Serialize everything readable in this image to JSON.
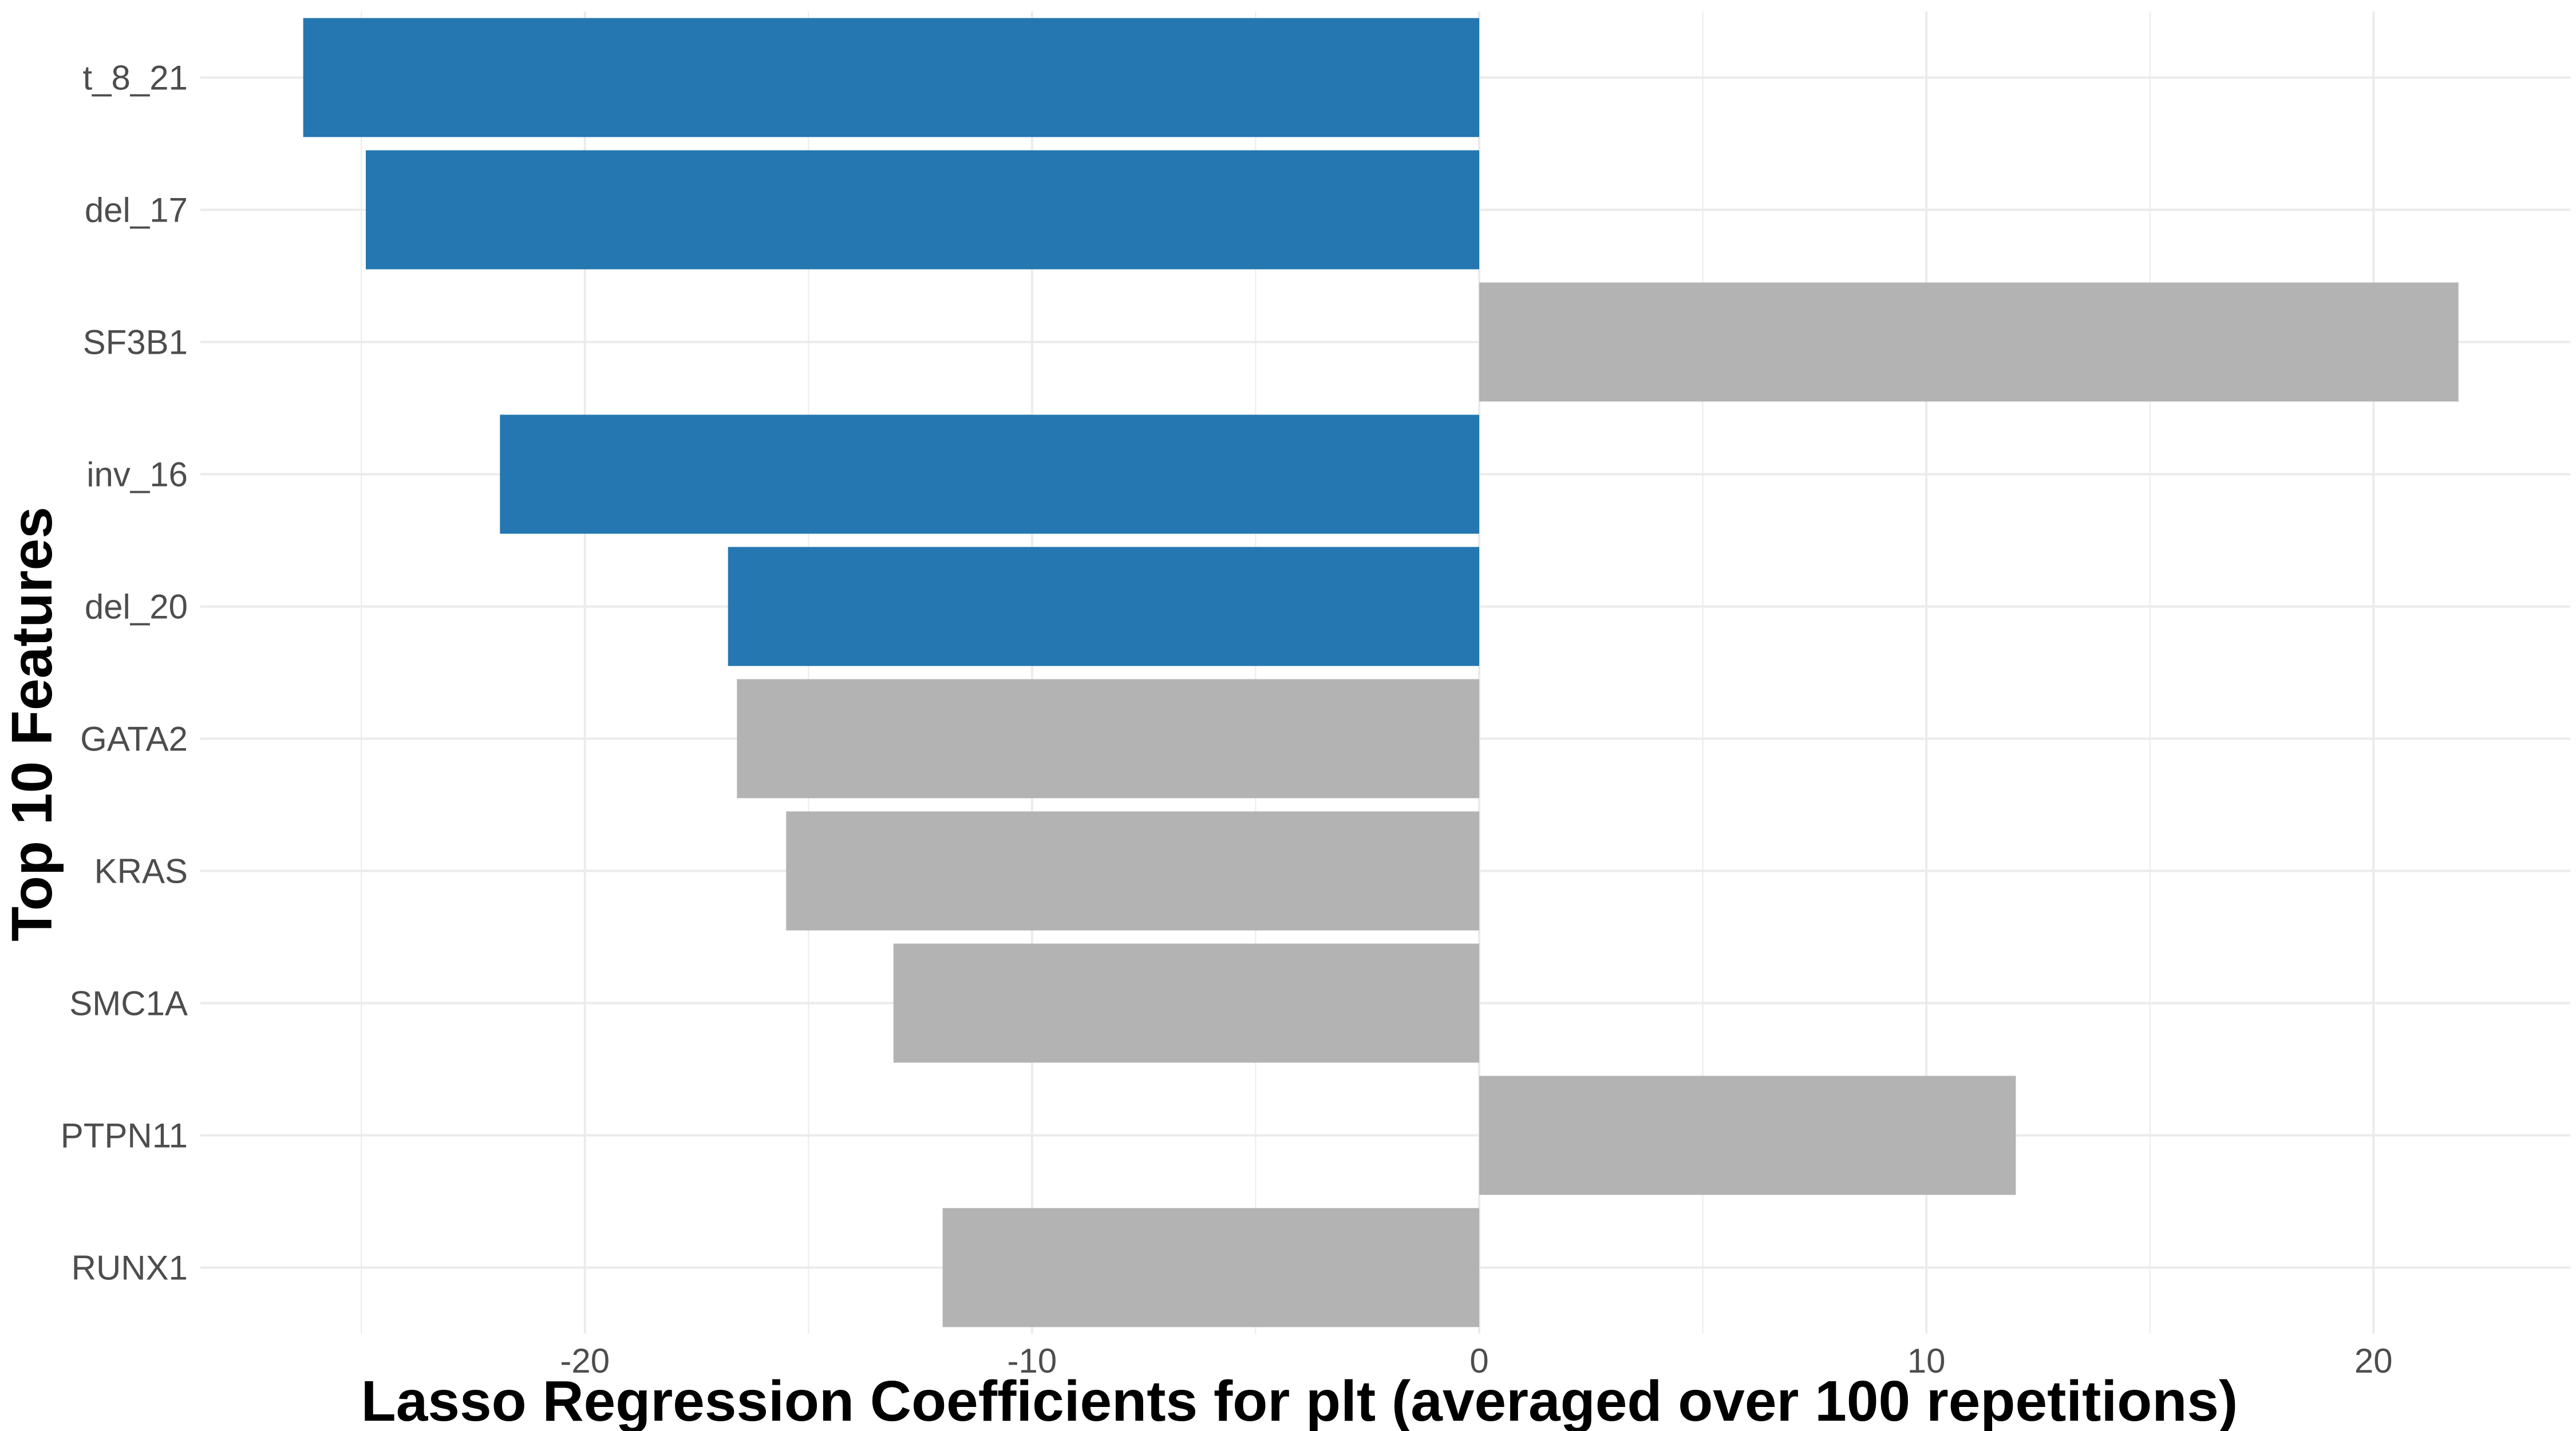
{
  "chart_data": {
    "type": "bar",
    "orientation": "horizontal",
    "title": "",
    "xlabel": "Lasso Regression Coefficients for plt (averaged over 100 repetitions)",
    "ylabel": "Top 10 Features",
    "categories": [
      "t_8_21",
      "del_17",
      "SF3B1",
      "inv_16",
      "del_20",
      "GATA2",
      "KRAS",
      "SMC1A",
      "PTPN11",
      "RUNX1"
    ],
    "values": [
      -26.3,
      -24.9,
      21.9,
      -21.9,
      -16.8,
      -16.6,
      -15.5,
      -13.1,
      12.0,
      -12.0
    ],
    "highlighted": [
      true,
      true,
      false,
      true,
      true,
      false,
      false,
      false,
      false,
      false
    ],
    "xlim": [
      -28.6,
      24.4
    ],
    "xticks": [
      -20,
      -10,
      0,
      10,
      20
    ],
    "xtick_labels": [
      "-20",
      "-10",
      "0",
      "10",
      "20"
    ],
    "grid": true,
    "legend": "none",
    "colors": {
      "highlight": "#2477B0",
      "default": "#B3B3B3",
      "grid": "#EBEBEB",
      "background": "#FFFFFF"
    }
  }
}
